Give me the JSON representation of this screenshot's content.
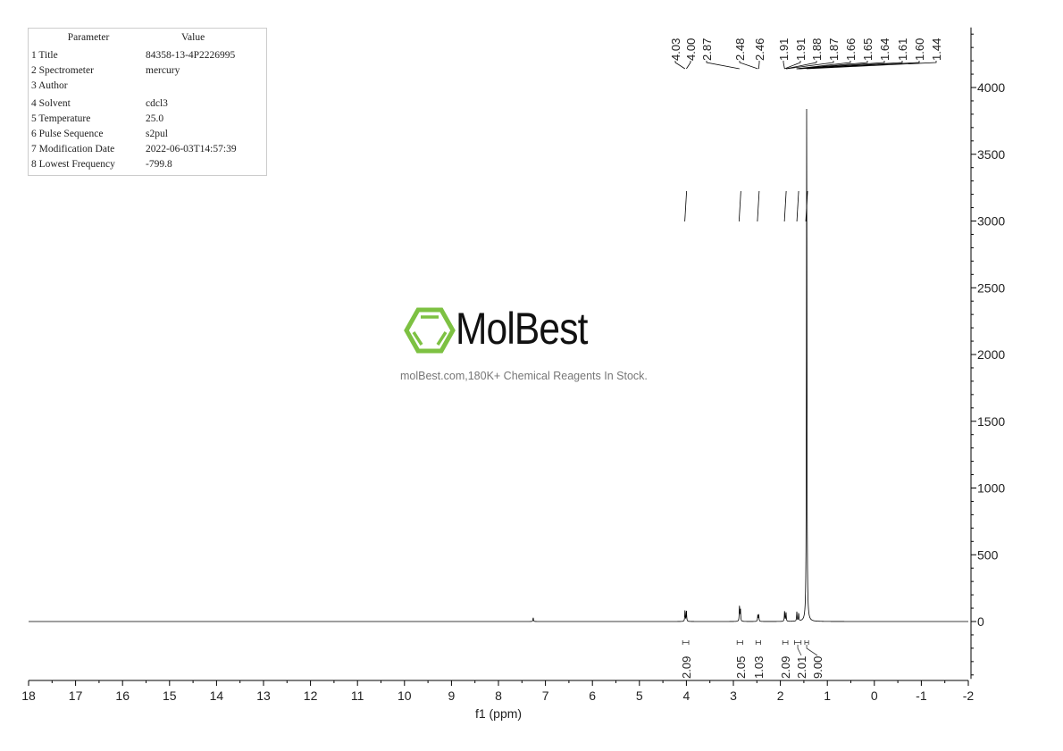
{
  "parameters": {
    "header": [
      "Parameter",
      "Value"
    ],
    "rows": [
      {
        "key": "1 Title",
        "value": "84358-13-4P2226995"
      },
      {
        "key": "2 Spectrometer",
        "value": "mercury"
      },
      {
        "key": "3 Author",
        "value": ""
      },
      {
        "key": "4 Solvent",
        "value": "cdcl3"
      },
      {
        "key": "5 Temperature",
        "value": "25.0"
      },
      {
        "key": "6 Pulse Sequence",
        "value": "s2pul"
      },
      {
        "key": "7 Modification Date",
        "value": "2022-06-03T14:57:39"
      },
      {
        "key": "8 Lowest Frequency",
        "value": "-799.8"
      }
    ]
  },
  "watermark": {
    "brand": "MolBest",
    "tagline": "molBest.com,180K+ Chemical Reagents In Stock.",
    "color": "#7dc142"
  },
  "chart_data": {
    "type": "line",
    "title": "",
    "xlabel": "f1 (ppm)",
    "ylabel": "",
    "xlim": [
      18,
      -2
    ],
    "ylim": [
      -430,
      4450
    ],
    "x_ticks": [
      "18",
      "17",
      "16",
      "15",
      "14",
      "13",
      "12",
      "11",
      "10",
      "9",
      "8",
      "7",
      "6",
      "5",
      "4",
      "3",
      "2",
      "1",
      "0",
      "-1",
      "-2"
    ],
    "y_ticks": [
      "0",
      "500",
      "1000",
      "1500",
      "2000",
      "2500",
      "3000",
      "3500",
      "4000"
    ],
    "grid": false,
    "peaks": [
      {
        "ppm": 7.26,
        "height": 30
      },
      {
        "ppm": 4.03,
        "height": 85
      },
      {
        "ppm": 4.0,
        "height": 85
      },
      {
        "ppm": 2.87,
        "height": 120
      },
      {
        "ppm": 2.85,
        "height": 95
      },
      {
        "ppm": 2.48,
        "height": 50
      },
      {
        "ppm": 2.46,
        "height": 50
      },
      {
        "ppm": 1.91,
        "height": 80
      },
      {
        "ppm": 1.88,
        "height": 70
      },
      {
        "ppm": 1.65,
        "height": 70
      },
      {
        "ppm": 1.61,
        "height": 60
      },
      {
        "ppm": 1.44,
        "height": 3960
      }
    ],
    "peak_labels": [
      "4.03",
      "4.00",
      "2.87",
      "2.48",
      "2.46",
      "1.91",
      "1.91",
      "1.88",
      "1.87",
      "1.66",
      "1.65",
      "1.64",
      "1.61",
      "1.60",
      "1.44"
    ],
    "integrals": [
      {
        "from": 4.08,
        "to": 3.95,
        "value": "2.09"
      },
      {
        "from": 2.92,
        "to": 2.8,
        "value": "2.05"
      },
      {
        "from": 2.52,
        "to": 2.42,
        "value": "1.03"
      },
      {
        "from": 1.95,
        "to": 1.84,
        "value": "2.09"
      },
      {
        "from": 1.7,
        "to": 1.56,
        "value": "2.01"
      },
      {
        "from": 1.48,
        "to": 1.4,
        "value": "9.00"
      }
    ],
    "line_color": "#000000"
  }
}
